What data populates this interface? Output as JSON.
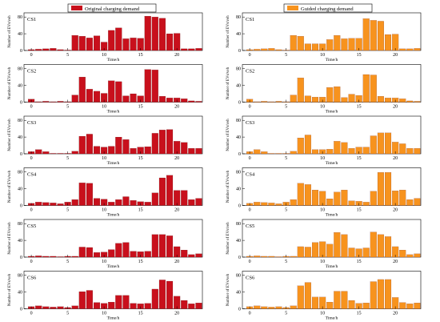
{
  "chart_data": [
    {
      "type": "bar",
      "name": "Original charging demand",
      "legend_label": "Original charging demand",
      "color": "#c8101c",
      "ylabel": "Number of EVs/veh",
      "xlabel": "Time/h",
      "xticks": [
        0,
        5,
        10,
        15,
        20
      ],
      "yticks": [
        0,
        40,
        80
      ],
      "ylim": [
        0,
        90
      ],
      "x": [
        0,
        1,
        2,
        3,
        4,
        5,
        6,
        7,
        8,
        9,
        10,
        11,
        12,
        13,
        14,
        15,
        16,
        17,
        18,
        19,
        20,
        21,
        22,
        23
      ],
      "panels": [
        {
          "label": "CS1",
          "values": [
            2,
            3,
            4,
            5,
            2,
            1,
            36,
            34,
            30,
            35,
            20,
            48,
            54,
            28,
            30,
            29,
            82,
            80,
            77,
            40,
            41,
            4,
            4,
            5
          ]
        },
        {
          "label": "CS2",
          "values": [
            7,
            1,
            2,
            1,
            2,
            1,
            17,
            60,
            31,
            26,
            21,
            51,
            49,
            15,
            20,
            15,
            78,
            77,
            14,
            10,
            10,
            8,
            3,
            2
          ]
        },
        {
          "label": "CS3",
          "values": [
            5,
            10,
            5,
            1,
            1,
            1,
            6,
            42,
            47,
            18,
            16,
            18,
            40,
            34,
            13,
            16,
            17,
            49,
            57,
            58,
            30,
            27,
            13,
            13
          ]
        },
        {
          "label": "CS4",
          "values": [
            5,
            8,
            7,
            6,
            4,
            8,
            14,
            54,
            53,
            17,
            15,
            8,
            14,
            21,
            12,
            9,
            8,
            30,
            66,
            72,
            36,
            36,
            14,
            17
          ]
        },
        {
          "label": "CS5",
          "values": [
            2,
            3,
            2,
            2,
            1,
            2,
            2,
            24,
            23,
            11,
            12,
            18,
            33,
            35,
            14,
            13,
            14,
            54,
            54,
            51,
            25,
            17,
            6,
            8
          ]
        },
        {
          "label": "CS6",
          "values": [
            5,
            7,
            5,
            4,
            5,
            3,
            7,
            41,
            44,
            15,
            13,
            16,
            32,
            32,
            13,
            12,
            13,
            47,
            69,
            66,
            30,
            20,
            12,
            14
          ]
        }
      ]
    },
    {
      "type": "bar",
      "name": "Guided charging demand",
      "legend_label": "Guided charging demand",
      "color": "#f7931e",
      "ylabel": "Number of EVs/veh",
      "xlabel": "Time/h",
      "xticks": [
        0,
        5,
        10,
        15,
        20
      ],
      "yticks": [
        0,
        40,
        80
      ],
      "ylim": [
        0,
        90
      ],
      "x": [
        0,
        1,
        2,
        3,
        4,
        5,
        6,
        7,
        8,
        9,
        10,
        11,
        12,
        13,
        14,
        15,
        16,
        17,
        18,
        19,
        20,
        21,
        22,
        23
      ],
      "panels": [
        {
          "label": "CS1",
          "values": [
            2,
            3,
            4,
            5,
            2,
            1,
            36,
            34,
            16,
            16,
            16,
            26,
            36,
            28,
            29,
            29,
            76,
            72,
            70,
            38,
            39,
            4,
            4,
            5
          ]
        },
        {
          "label": "CS2",
          "values": [
            7,
            1,
            2,
            1,
            2,
            1,
            17,
            58,
            15,
            12,
            12,
            35,
            37,
            11,
            19,
            16,
            66,
            65,
            14,
            10,
            10,
            8,
            3,
            2
          ]
        },
        {
          "label": "CS3",
          "values": [
            5,
            10,
            5,
            1,
            1,
            1,
            6,
            38,
            45,
            10,
            10,
            11,
            30,
            27,
            13,
            16,
            16,
            43,
            50,
            50,
            28,
            24,
            13,
            13
          ]
        },
        {
          "label": "CS4",
          "values": [
            5,
            8,
            7,
            6,
            4,
            8,
            14,
            53,
            50,
            37,
            34,
            16,
            32,
            37,
            11,
            10,
            8,
            34,
            79,
            79,
            35,
            37,
            14,
            17
          ]
        },
        {
          "label": "CS5",
          "values": [
            2,
            3,
            2,
            2,
            1,
            2,
            2,
            25,
            24,
            35,
            37,
            31,
            59,
            54,
            22,
            20,
            22,
            60,
            54,
            49,
            25,
            17,
            6,
            8
          ]
        },
        {
          "label": "CS6",
          "values": [
            5,
            7,
            5,
            4,
            5,
            3,
            7,
            55,
            63,
            28,
            28,
            16,
            42,
            42,
            20,
            13,
            14,
            65,
            70,
            70,
            27,
            15,
            12,
            14
          ]
        }
      ]
    }
  ]
}
